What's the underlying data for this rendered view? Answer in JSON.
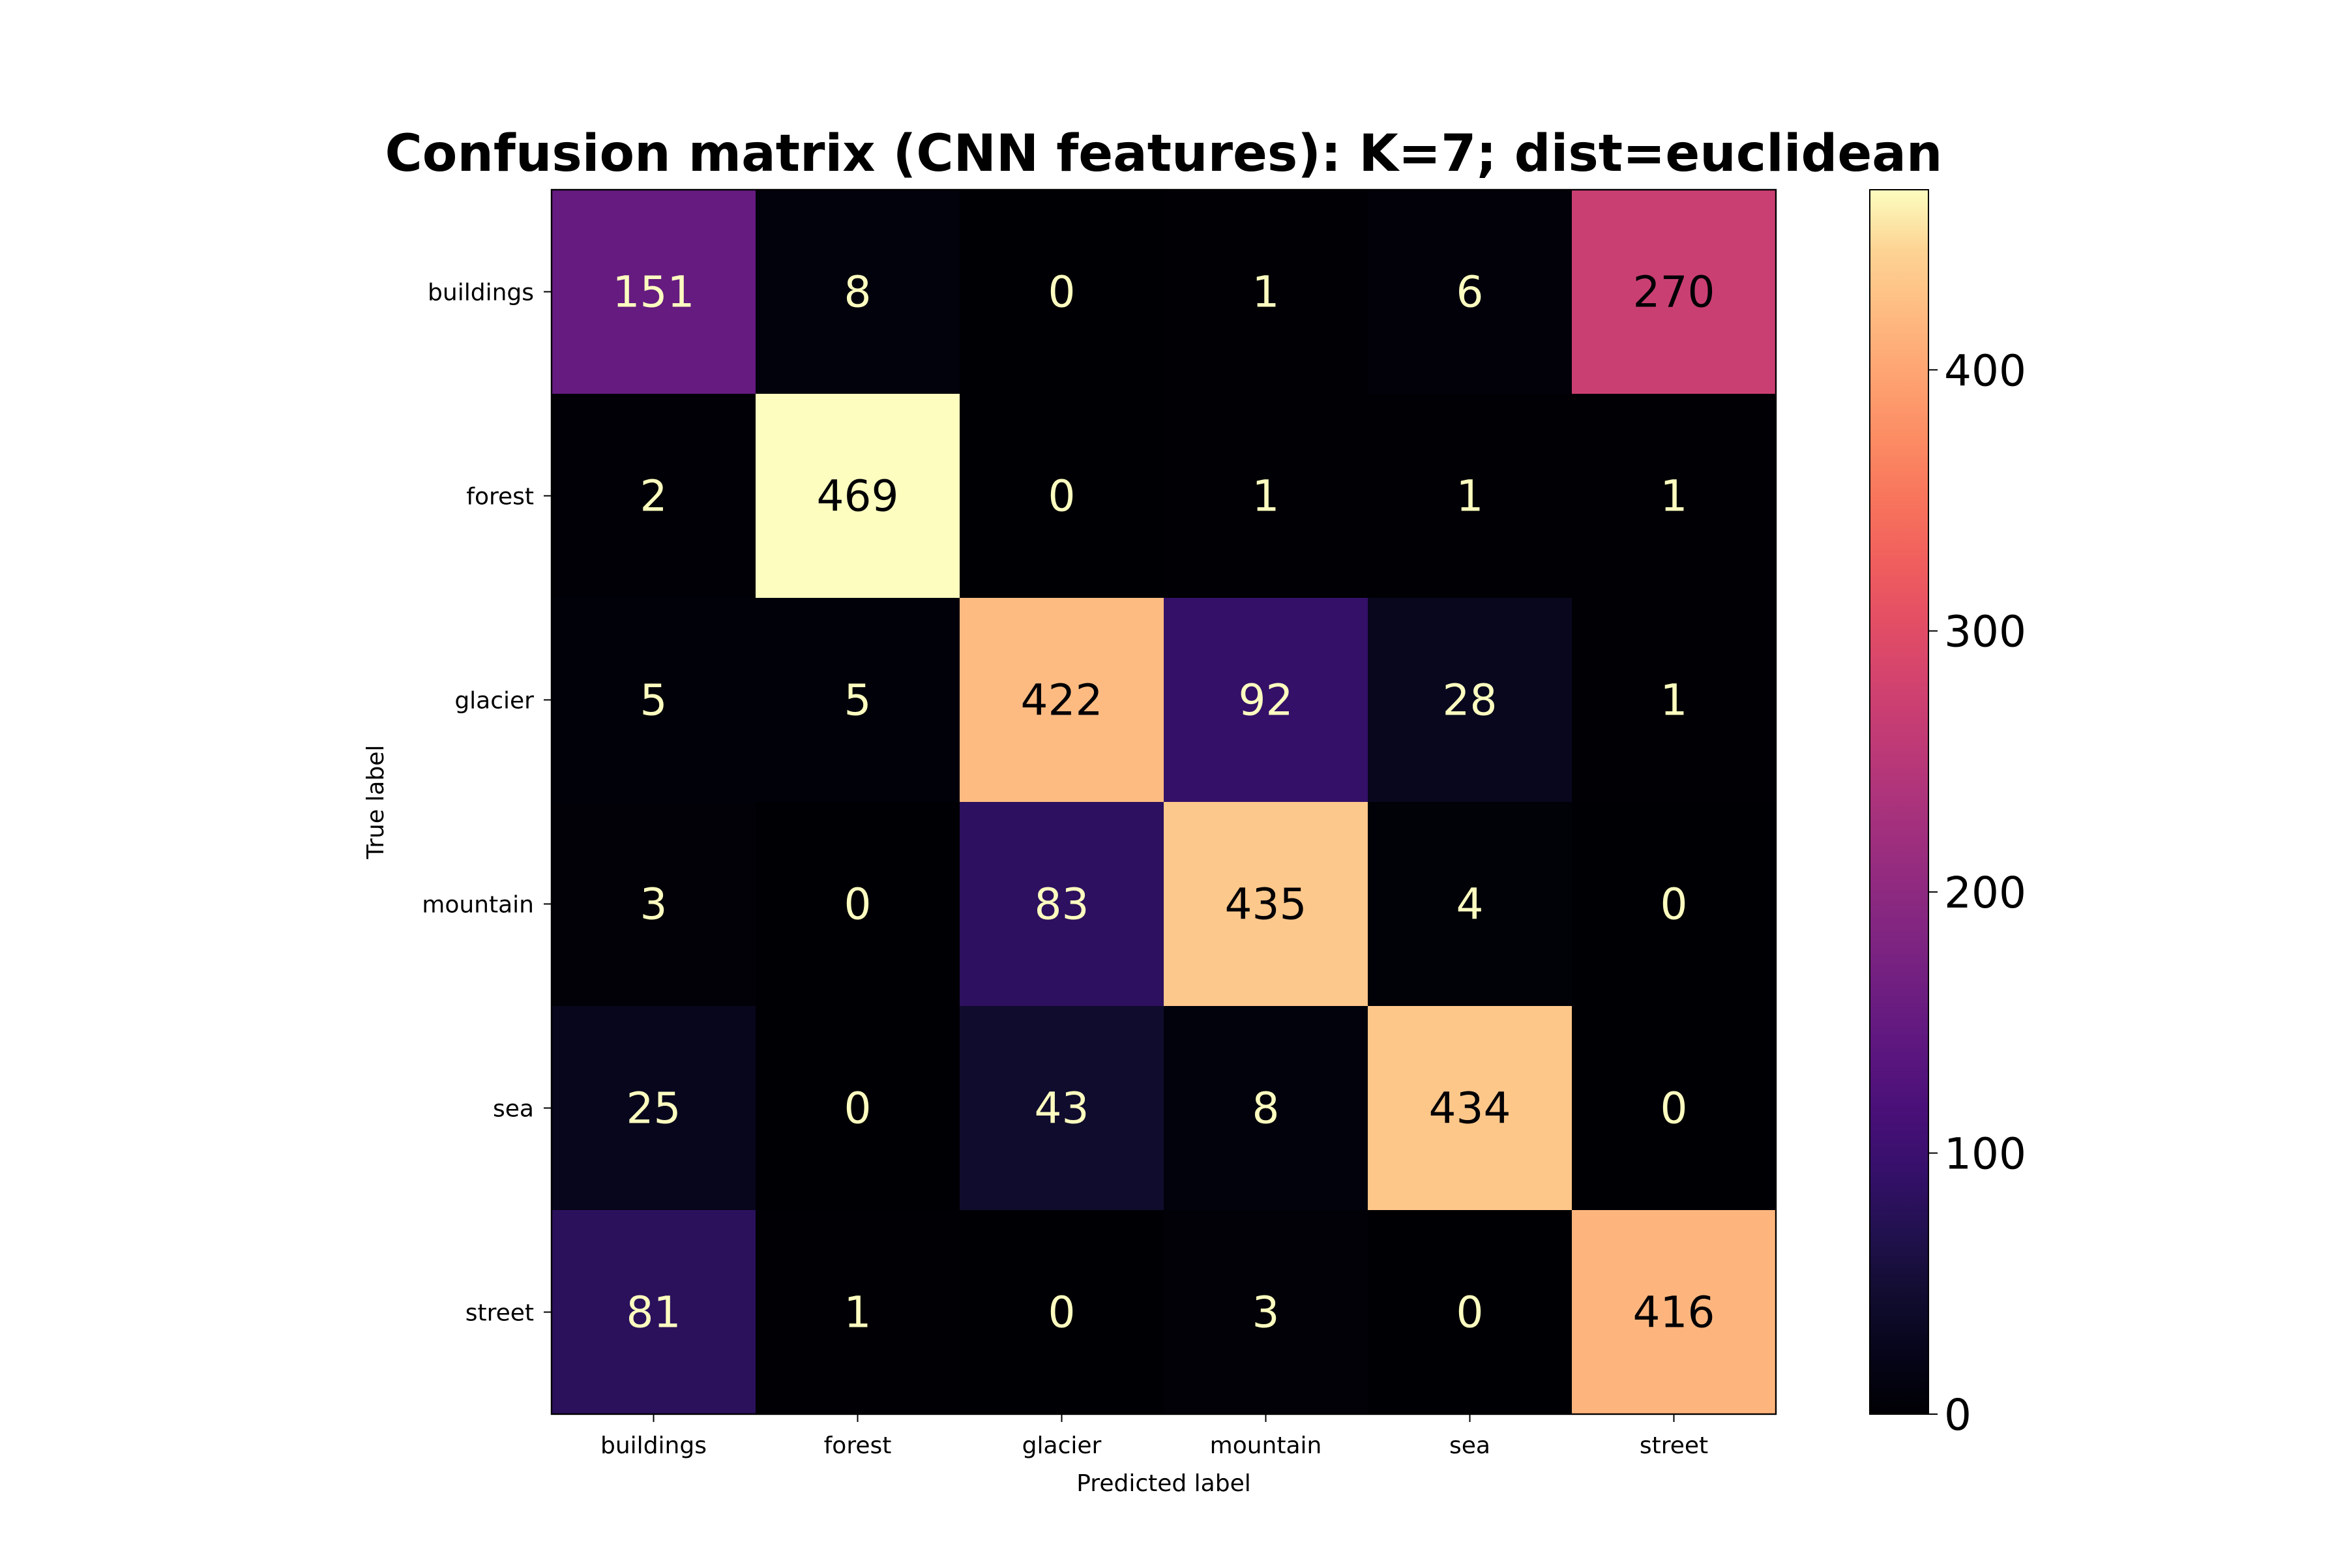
{
  "chart_data": {
    "type": "heatmap",
    "title": "Confusion matrix (CNN features): K=7; dist=euclidean",
    "xlabel": "Predicted label",
    "ylabel": "True label",
    "x_categories": [
      "buildings",
      "forest",
      "glacier",
      "mountain",
      "sea",
      "street"
    ],
    "y_categories": [
      "buildings",
      "forest",
      "glacier",
      "mountain",
      "sea",
      "street"
    ],
    "values": [
      [
        151,
        8,
        0,
        1,
        6,
        270
      ],
      [
        2,
        469,
        0,
        1,
        1,
        1
      ],
      [
        5,
        5,
        422,
        92,
        28,
        1
      ],
      [
        3,
        0,
        83,
        435,
        4,
        0
      ],
      [
        25,
        0,
        43,
        8,
        434,
        0
      ],
      [
        81,
        1,
        0,
        3,
        0,
        416
      ]
    ],
    "colormap": "magma",
    "vmin": 0,
    "vmax": 469,
    "colorbar_ticks": [
      0,
      100,
      200,
      300,
      400
    ],
    "text_color_light": "#fcfdbf",
    "text_color_dark": "#000004"
  }
}
